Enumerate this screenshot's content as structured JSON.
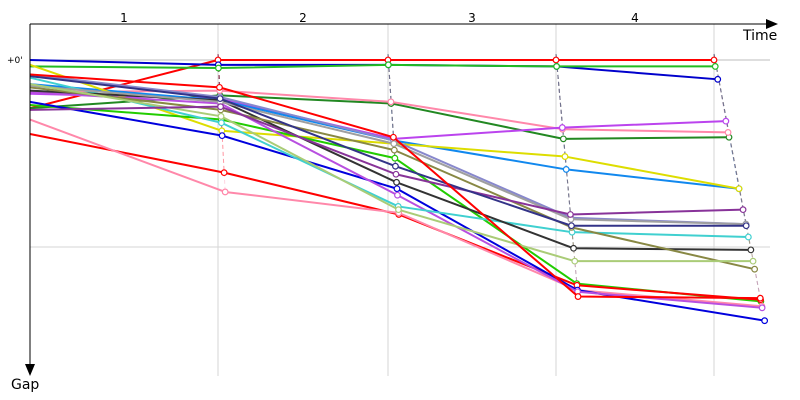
{
  "chart_data": {
    "type": "line",
    "title": "",
    "xlabel": "Time",
    "ylabel": "Gap",
    "zero_tick_label": "+0'",
    "lap_labels": [
      "1",
      "2",
      "3",
      "4"
    ],
    "x_range": [
      0,
      4.5
    ],
    "y_range": [
      0,
      1.74
    ],
    "grid": true,
    "legend": "none",
    "series": [
      {
        "color": "#ff0000",
        "values": [
          0.3,
          0.0,
          0.0,
          0.0,
          0.0
        ]
      },
      {
        "color": "#0000cc",
        "values": [
          0.0,
          0.03,
          0.03,
          0.04,
          0.12
        ]
      },
      {
        "color": "#22bb22",
        "values": [
          0.04,
          0.05,
          0.03,
          0.04,
          0.04
        ]
      },
      {
        "color": "#228822",
        "values": [
          0.3,
          0.22,
          0.27,
          0.49,
          0.48
        ]
      },
      {
        "color": "#ff88aa",
        "values": [
          0.2,
          0.19,
          0.26,
          0.43,
          0.45
        ]
      },
      {
        "color": "#bb44ee",
        "values": [
          0.21,
          0.24,
          0.49,
          0.42,
          0.38
        ]
      },
      {
        "color": "#1188ee",
        "values": [
          0.15,
          0.25,
          0.5,
          0.68,
          0.8
        ]
      },
      {
        "color": "#dddd00",
        "values": [
          0.03,
          0.44,
          0.52,
          0.6,
          0.8
        ]
      },
      {
        "color": "#22cc00",
        "values": [
          0.28,
          0.37,
          0.61,
          1.39,
          1.5
        ]
      },
      {
        "color": "#ff0000",
        "values": [
          0.46,
          0.7,
          0.96,
          1.4,
          1.49
        ]
      },
      {
        "color": "#ff88aa",
        "values": [
          0.37,
          0.82,
          0.95,
          1.43,
          1.53
        ]
      },
      {
        "color": "#0000dd",
        "values": [
          0.26,
          0.47,
          0.8,
          1.43,
          1.62
        ]
      },
      {
        "color": "#b84fe0",
        "values": [
          0.2,
          0.27,
          0.84,
          1.44,
          1.54
        ]
      },
      {
        "color": "#40d0d0",
        "values": [
          0.11,
          0.39,
          0.91,
          1.07,
          1.1
        ]
      },
      {
        "color": "#333333",
        "values": [
          0.19,
          0.25,
          0.76,
          1.17,
          1.18
        ]
      },
      {
        "color": "#888844",
        "values": [
          0.17,
          0.31,
          0.56,
          1.04,
          1.3
        ]
      },
      {
        "color": "#8888cc",
        "values": [
          0.09,
          0.23,
          0.5,
          0.98,
          1.02
        ]
      },
      {
        "color": "#9f9f9f",
        "values": [
          0.16,
          0.26,
          0.52,
          0.99,
          1.02
        ]
      },
      {
        "color": "#aacc77",
        "values": [
          0.15,
          0.35,
          0.93,
          1.25,
          1.25
        ]
      },
      {
        "color": "#883399",
        "values": [
          0.31,
          0.29,
          0.71,
          0.96,
          0.93
        ]
      },
      {
        "color": "#333388",
        "values": [
          0.1,
          0.24,
          0.66,
          1.03,
          1.03
        ]
      },
      {
        "color": "#ff0000",
        "values": [
          0.09,
          0.17,
          0.48,
          1.47,
          1.48
        ]
      }
    ]
  }
}
